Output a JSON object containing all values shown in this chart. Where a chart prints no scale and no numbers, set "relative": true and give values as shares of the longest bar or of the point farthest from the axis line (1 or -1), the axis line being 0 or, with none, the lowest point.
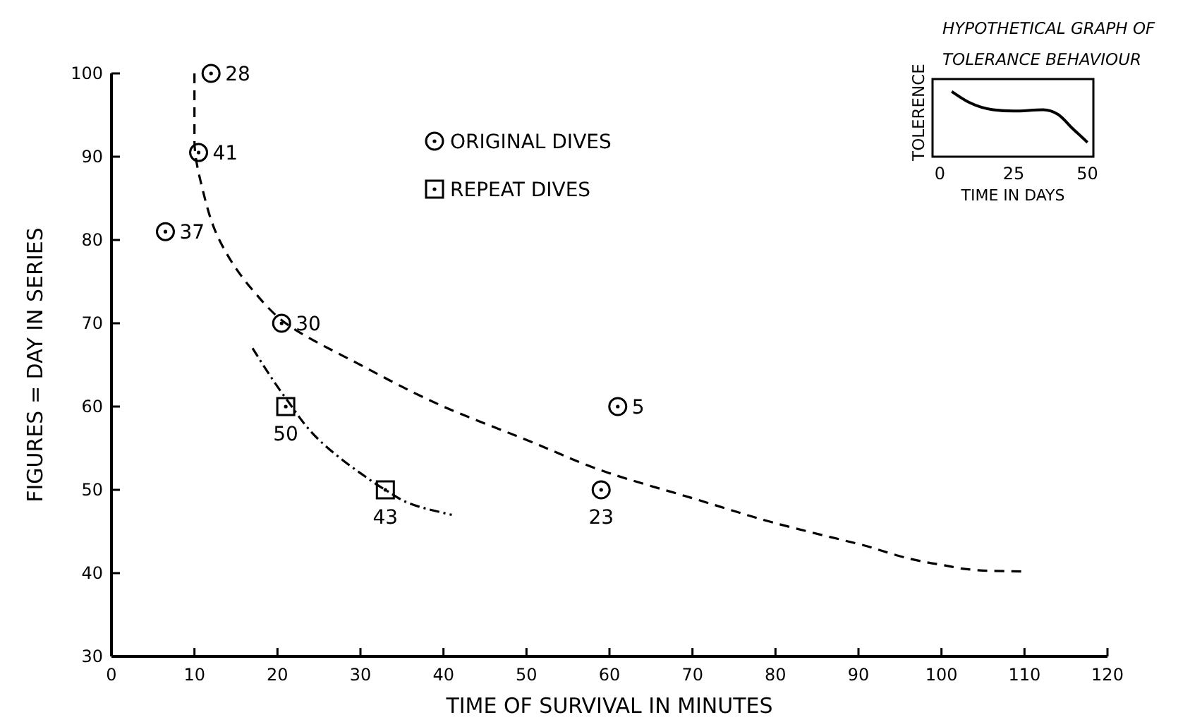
{
  "chart_data": [
    {
      "type": "scatter",
      "xlabel": "TIME OF SURVIVAL IN MINUTES",
      "ylabel": "FIGURES = DAY IN SERIES",
      "xlim": [
        0,
        120
      ],
      "xticks": [
        0,
        10,
        20,
        30,
        40,
        50,
        60,
        70,
        80,
        90,
        100,
        110,
        120
      ],
      "ylim": [
        30,
        100
      ],
      "yticks": [
        30,
        40,
        50,
        60,
        70,
        80,
        90,
        100
      ],
      "grid": false,
      "legend": "top",
      "series": [
        {
          "name": "ORIGINAL DIVES",
          "color": "#000000",
          "marker": "circle",
          "x": [
            12,
            10.5,
            6.5,
            20.5,
            61,
            59
          ],
          "values": [
            100,
            90.5,
            81,
            70,
            60,
            50
          ]
        },
        {
          "name": "REPEAT DIVES",
          "color": "#000000",
          "marker": "square",
          "x": [
            21,
            33
          ],
          "values": [
            60,
            50
          ]
        },
        {
          "type": "line",
          "color": "#000000",
          "line_style": "dashed",
          "x": [
            10,
            10,
            11,
            13,
            17,
            21,
            30,
            40,
            50,
            60,
            70,
            80,
            90,
            100,
            105,
            110
          ],
          "values": [
            100,
            92,
            86,
            80,
            74,
            70,
            65,
            60,
            56,
            52,
            49,
            46,
            43.5,
            41,
            40.3,
            40.2
          ]
        },
        {
          "type": "line",
          "color": "#000000",
          "line_style": "dashdot",
          "x": [
            17,
            21,
            25,
            30,
            33,
            37,
            41
          ],
          "values": [
            67,
            61,
            56,
            52,
            50,
            48,
            47
          ]
        }
      ],
      "annotations": [
        {
          "text": "28",
          "x": 12,
          "y": 100
        },
        {
          "text": "41",
          "x": 10.5,
          "y": 90.5
        },
        {
          "text": "37",
          "x": 6.5,
          "y": 81
        },
        {
          "text": "30",
          "x": 20.5,
          "y": 70
        },
        {
          "text": "5",
          "x": 61,
          "y": 60
        },
        {
          "text": "23",
          "x": 59,
          "y": 50
        },
        {
          "text": "50",
          "x": 21,
          "y": 60
        },
        {
          "text": "43",
          "x": 33,
          "y": 50
        }
      ]
    },
    {
      "type": "line",
      "relative": true,
      "title": "HYPOTHETICAL GRAPH OF TOLERANCE BEHAVIOUR",
      "xlabel": "TIME IN DAYS",
      "ylabel": "TOLERENCE",
      "xlim": [
        -2.5,
        52
      ],
      "xticks": [
        0,
        25,
        50
      ],
      "tick_labels": "x",
      "series": [
        {
          "color": "#000000",
          "x": [
            4,
            10,
            18,
            25,
            35,
            40,
            45,
            50
          ],
          "values": [
            1,
            0.83,
            0.72,
            0.7,
            0.72,
            0.65,
            0.43,
            0.22
          ]
        }
      ]
    }
  ]
}
